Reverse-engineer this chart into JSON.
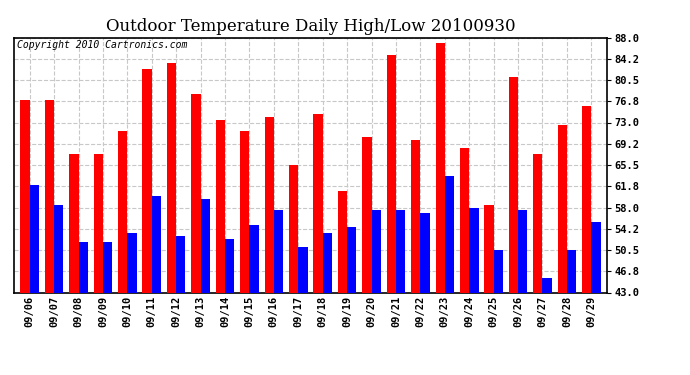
{
  "title": "Outdoor Temperature Daily High/Low 20100930",
  "copyright": "Copyright 2010 Cartronics.com",
  "dates": [
    "09/06",
    "09/07",
    "09/08",
    "09/09",
    "09/10",
    "09/11",
    "09/12",
    "09/13",
    "09/14",
    "09/15",
    "09/16",
    "09/17",
    "09/18",
    "09/19",
    "09/20",
    "09/21",
    "09/22",
    "09/23",
    "09/24",
    "09/25",
    "09/26",
    "09/27",
    "09/28",
    "09/29"
  ],
  "highs": [
    77.0,
    77.0,
    67.5,
    67.5,
    71.5,
    82.5,
    83.5,
    78.0,
    73.5,
    71.5,
    74.0,
    65.5,
    74.5,
    61.0,
    70.5,
    85.0,
    70.0,
    87.0,
    68.5,
    58.5,
    81.0,
    67.5,
    72.5,
    76.0
  ],
  "lows": [
    62.0,
    58.5,
    52.0,
    52.0,
    53.5,
    60.0,
    53.0,
    59.5,
    52.5,
    55.0,
    57.5,
    51.0,
    53.5,
    54.5,
    57.5,
    57.5,
    57.0,
    63.5,
    58.0,
    50.5,
    57.5,
    45.5,
    50.5,
    55.5
  ],
  "high_color": "#ff0000",
  "low_color": "#0000ff",
  "bg_color": "#ffffff",
  "plot_bg_color": "#ffffff",
  "yticks": [
    43.0,
    46.8,
    50.5,
    54.2,
    58.0,
    61.8,
    65.5,
    69.2,
    73.0,
    76.8,
    80.5,
    84.2,
    88.0
  ],
  "ymin": 43.0,
  "ymax": 88.0,
  "grid_color": "#c8c8c8",
  "bar_width": 0.38,
  "title_fontsize": 12,
  "tick_fontsize": 7.5,
  "copyright_fontsize": 7
}
